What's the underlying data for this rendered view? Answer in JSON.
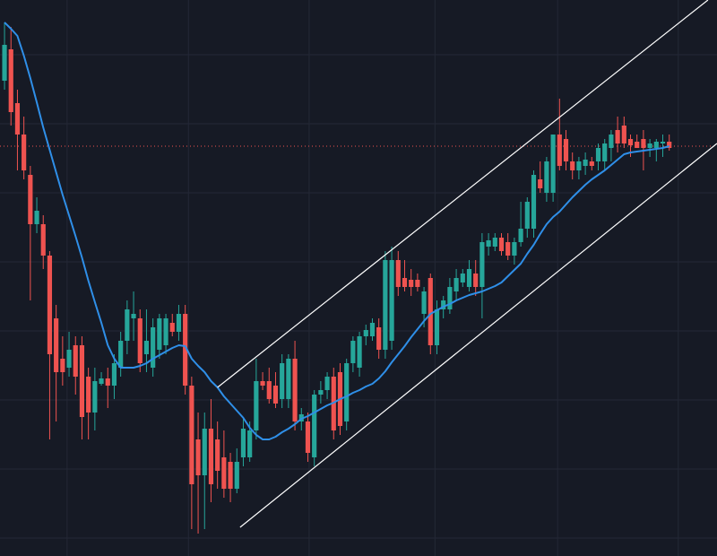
{
  "chart_data": {
    "type": "candlestick",
    "background": "#161a25",
    "grid": true,
    "grid_color": "#242836",
    "up_color": "#26a69a",
    "down_color": "#ef5350",
    "xlim": [
      -0.7,
      110.4
    ],
    "ylim": [
      0,
      620
    ],
    "xticks": [
      9.7,
      28.5,
      47.2,
      66.7,
      85.7,
      104.4
    ],
    "yticks": [
      20,
      97,
      174,
      251,
      328,
      405,
      482,
      559
    ],
    "categories": [
      null,
      null,
      null,
      null,
      null,
      null,
      null,
      null,
      null,
      null,
      null,
      null,
      null,
      null,
      null,
      null,
      null,
      null,
      null,
      null,
      null,
      null,
      null,
      null,
      null,
      null,
      null,
      null,
      null,
      null,
      null,
      null,
      null,
      null,
      null,
      null,
      null,
      null,
      null,
      null,
      null,
      null,
      null,
      null,
      null,
      null,
      null,
      null,
      null,
      null,
      null,
      null,
      null,
      null,
      null,
      null,
      null,
      null,
      null,
      null,
      null,
      null,
      null,
      null,
      null,
      null,
      null,
      null,
      null,
      null,
      null,
      null,
      null,
      null,
      null,
      null,
      null,
      null,
      null,
      null,
      null,
      null,
      null,
      null,
      null,
      null,
      null,
      null,
      null,
      null,
      null,
      null,
      null,
      null,
      null,
      null,
      null,
      null,
      null,
      null,
      null,
      null,
      null,
      null
    ],
    "open": [
      530,
      565,
      505,
      470,
      425,
      370,
      370,
      335,
      265,
      220,
      210,
      235,
      235,
      200,
      160,
      192,
      198,
      190,
      210,
      240,
      265,
      265,
      225,
      210,
      230,
      235,
      260,
      250,
      270,
      190,
      130,
      90,
      142,
      130,
      110,
      105,
      75,
      110,
      110,
      140,
      195,
      195,
      190,
      175,
      175,
      220,
      150,
      150,
      110,
      180,
      185,
      200,
      205,
      150,
      215,
      210,
      245,
      245,
      255,
      230,
      240,
      330,
      310,
      308,
      308,
      270,
      310,
      235,
      275,
      275,
      295,
      305,
      300,
      315,
      300,
      345,
      345,
      355,
      350,
      335,
      350,
      365,
      365,
      420,
      405,
      405,
      470,
      465,
      440,
      430,
      435,
      440,
      440,
      440,
      455,
      475,
      480,
      465,
      462,
      465,
      455,
      455,
      460,
      462
    ],
    "high": [
      595,
      590,
      520,
      490,
      435,
      400,
      380,
      340,
      280,
      245,
      250,
      245,
      245,
      210,
      210,
      205,
      210,
      225,
      250,
      285,
      295,
      275,
      275,
      265,
      270,
      270,
      270,
      280,
      280,
      200,
      160,
      160,
      175,
      150,
      140,
      115,
      120,
      155,
      150,
      220,
      205,
      210,
      205,
      225,
      225,
      240,
      165,
      160,
      185,
      195,
      205,
      210,
      215,
      220,
      245,
      250,
      258,
      265,
      265,
      340,
      345,
      340,
      330,
      320,
      315,
      300,
      315,
      285,
      290,
      310,
      320,
      320,
      330,
      330,
      360,
      360,
      360,
      360,
      360,
      355,
      395,
      400,
      430,
      440,
      445,
      470,
      510,
      475,
      450,
      445,
      450,
      445,
      460,
      465,
      475,
      490,
      490,
      470,
      470,
      475,
      465,
      465,
      470,
      470
    ],
    "low": [
      520,
      480,
      430,
      420,
      285,
      360,
      320,
      130,
      150,
      190,
      200,
      180,
      130,
      130,
      140,
      190,
      165,
      175,
      200,
      225,
      240,
      205,
      205,
      200,
      220,
      225,
      245,
      240,
      180,
      30,
      25,
      30,
      60,
      75,
      65,
      60,
      70,
      100,
      105,
      130,
      185,
      170,
      165,
      165,
      165,
      140,
      140,
      105,
      100,
      170,
      175,
      130,
      135,
      140,
      205,
      200,
      235,
      240,
      220,
      220,
      230,
      290,
      295,
      290,
      295,
      255,
      225,
      225,
      265,
      270,
      285,
      300,
      295,
      290,
      265,
      335,
      340,
      335,
      330,
      325,
      345,
      355,
      355,
      405,
      395,
      395,
      430,
      430,
      420,
      420,
      425,
      430,
      430,
      430,
      440,
      450,
      455,
      445,
      455,
      430,
      445,
      440,
      445,
      452
    ],
    "close": [
      570,
      495,
      470,
      430,
      370,
      385,
      335,
      225,
      205,
      205,
      230,
      200,
      155,
      160,
      195,
      198,
      190,
      215,
      240,
      275,
      270,
      215,
      240,
      255,
      265,
      265,
      250,
      270,
      190,
      80,
      90,
      142,
      80,
      95,
      75,
      75,
      105,
      142,
      140,
      195,
      190,
      175,
      170,
      215,
      220,
      150,
      158,
      115,
      180,
      185,
      200,
      140,
      145,
      215,
      240,
      245,
      252,
      260,
      230,
      330,
      330,
      300,
      300,
      300,
      300,
      295,
      235,
      275,
      285,
      300,
      310,
      315,
      320,
      300,
      350,
      352,
      355,
      340,
      335,
      350,
      365,
      395,
      425,
      410,
      440,
      470,
      435,
      440,
      430,
      440,
      442,
      435,
      455,
      460,
      470,
      460,
      460,
      458,
      455,
      455,
      460,
      462,
      462,
      455
    ],
    "ma": {
      "color": "#2f8fe8",
      "values": [
        595,
        588,
        580,
        558,
        533,
        506,
        478,
        453,
        428,
        403,
        380,
        357,
        333,
        307,
        283,
        260,
        235,
        220,
        210,
        210,
        210,
        212,
        215,
        220,
        224,
        228,
        232,
        235,
        234,
        220,
        212,
        205,
        195,
        188,
        178,
        170,
        162,
        154,
        143,
        135,
        130,
        130,
        133,
        138,
        142,
        147,
        153,
        156,
        160,
        164,
        168,
        171,
        175,
        178,
        182,
        185,
        189,
        192,
        198,
        206,
        216,
        225,
        234,
        244,
        253,
        262,
        270,
        274,
        278,
        281,
        285,
        288,
        291,
        293,
        295,
        298,
        301,
        305,
        312,
        319,
        326,
        337,
        347,
        359,
        370,
        378,
        384,
        392,
        400,
        407,
        414,
        420,
        425,
        430,
        436,
        442,
        448,
        450,
        451,
        452,
        453,
        454,
        455,
        457
      ]
    },
    "channel": [
      {
        "color": "#ffffff",
        "x": [
          33,
          109
        ],
        "y": [
          188,
          620
        ]
      },
      {
        "color": "#ffffff",
        "x": [
          36.5,
          110.4
        ],
        "y": [
          32,
          460
        ]
      }
    ],
    "price_line": {
      "value": 457,
      "color": "#ef5350"
    }
  }
}
